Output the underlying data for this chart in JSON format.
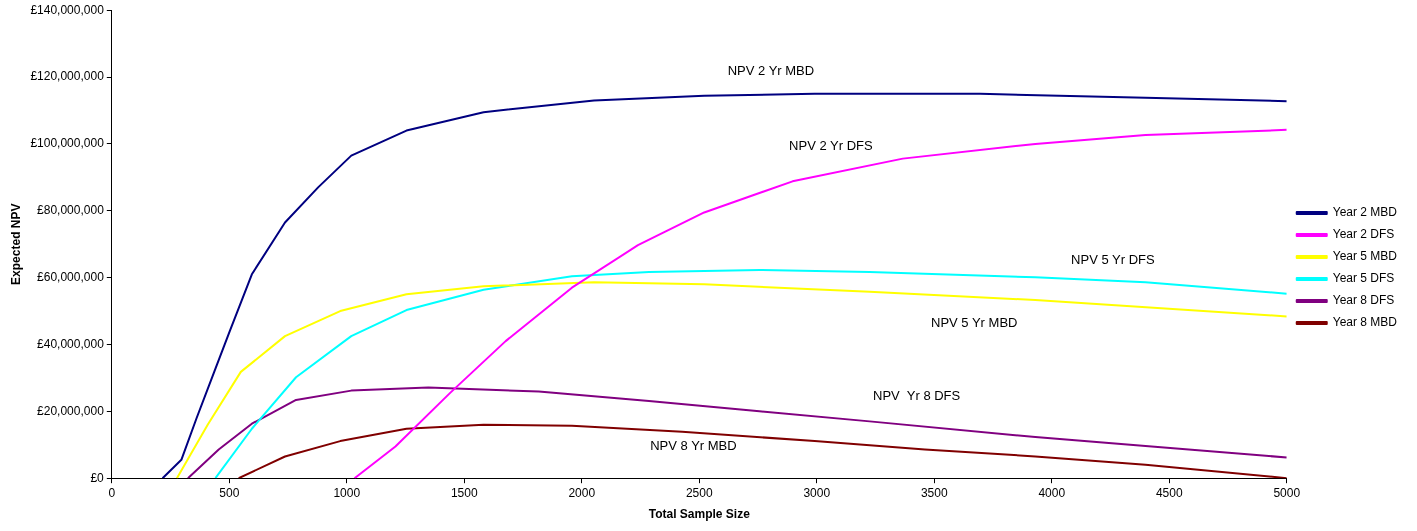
{
  "chart_data": {
    "type": "line",
    "xlabel": "Total Sample Size",
    "ylabel": "Expected NPV",
    "xlim": [
      0,
      5000
    ],
    "xticks": [
      0,
      500,
      1000,
      1500,
      2000,
      2500,
      3000,
      3500,
      4000,
      4500,
      5000
    ],
    "ylim": [
      0,
      140000000
    ],
    "yticks": [
      {
        "value": 0,
        "label": "£0"
      },
      {
        "value": 20000000,
        "label": "£20,000,000"
      },
      {
        "value": 40000000,
        "label": "£40,000,000"
      },
      {
        "value": 60000000,
        "label": "£60,000,000"
      },
      {
        "value": 80000000,
        "label": "£80,000,000"
      },
      {
        "value": 100000000,
        "label": "£100,000,000"
      },
      {
        "value": 120000000,
        "label": "£120,000,000"
      },
      {
        "value": 140000000,
        "label": "£140,000,000"
      }
    ],
    "grid": false,
    "legend": "right",
    "marker": "none",
    "line_style": "solid",
    "series": [
      {
        "name": "Year 2 MBD",
        "color": "#000080",
        "x": [
          216,
          296,
          361,
          437,
          502,
          596,
          737,
          878,
          1019,
          1254,
          1582,
          2052,
          2521,
          2991,
          3695,
          4399,
          5000
        ],
        "values": [
          0,
          5500000,
          18000000,
          32000000,
          44000000,
          61000000,
          76500000,
          87000000,
          96500000,
          104000000,
          109500000,
          113000000,
          114400000,
          115000000,
          115000000,
          113800000,
          112800000
        ]
      },
      {
        "name": "Year 2 DFS",
        "color": "#ff00ff",
        "x": [
          1033,
          1207,
          1441,
          1676,
          1958,
          2239,
          2521,
          2897,
          3366,
          3930,
          4399,
          5000
        ],
        "values": [
          0,
          9500000,
          25600000,
          41000000,
          57000000,
          69700000,
          79500000,
          88800000,
          95600000,
          100000000,
          102700000,
          104200000
        ]
      },
      {
        "name": "Year 5 MBD",
        "color": "#ffff00",
        "x": [
          277,
          408,
          549,
          737,
          972,
          1254,
          1582,
          2052,
          2521,
          3225,
          3930,
          5000
        ],
        "values": [
          0,
          16000000,
          31800000,
          42500000,
          50000000,
          55000000,
          57400000,
          58600000,
          58000000,
          55800000,
          53300000,
          48400000
        ]
      },
      {
        "name": "Year 5 DFS",
        "color": "#00ffff",
        "x": [
          441,
          596,
          784,
          1019,
          1254,
          1582,
          1958,
          2286,
          2756,
          3225,
          3930,
          4399,
          5000
        ],
        "values": [
          0,
          14800000,
          30200000,
          42500000,
          50300000,
          56400000,
          60400000,
          61700000,
          62300000,
          61700000,
          60100000,
          58600000,
          55200000
        ]
      },
      {
        "name": "Year 8 DFS",
        "color": "#800080",
        "x": [
          324,
          455,
          596,
          784,
          1019,
          1347,
          1817,
          2286,
          2756,
          3225,
          3930,
          4399,
          5000
        ],
        "values": [
          0,
          8600000,
          16300000,
          23400000,
          26200000,
          27100000,
          25900000,
          23100000,
          20000000,
          17000000,
          12300000,
          9600000,
          6200000
        ]
      },
      {
        "name": "Year 8 MBD",
        "color": "#800000",
        "x": [
          540,
          737,
          972,
          1254,
          1582,
          1958,
          2427,
          2991,
          3460,
          3930,
          4399,
          5000
        ],
        "values": [
          0,
          6500000,
          11100000,
          14800000,
          16000000,
          15700000,
          13900000,
          11100000,
          8600000,
          6500000,
          4000000,
          0
        ]
      }
    ],
    "annotations": [
      "NPV 2 Yr MBD",
      "NPV 2 Yr DFS",
      "NPV 5 Yr DFS",
      "NPV 5 Yr MBD",
      "NPV  Yr 8 DFS",
      "NPV 8 Yr MBD"
    ]
  }
}
